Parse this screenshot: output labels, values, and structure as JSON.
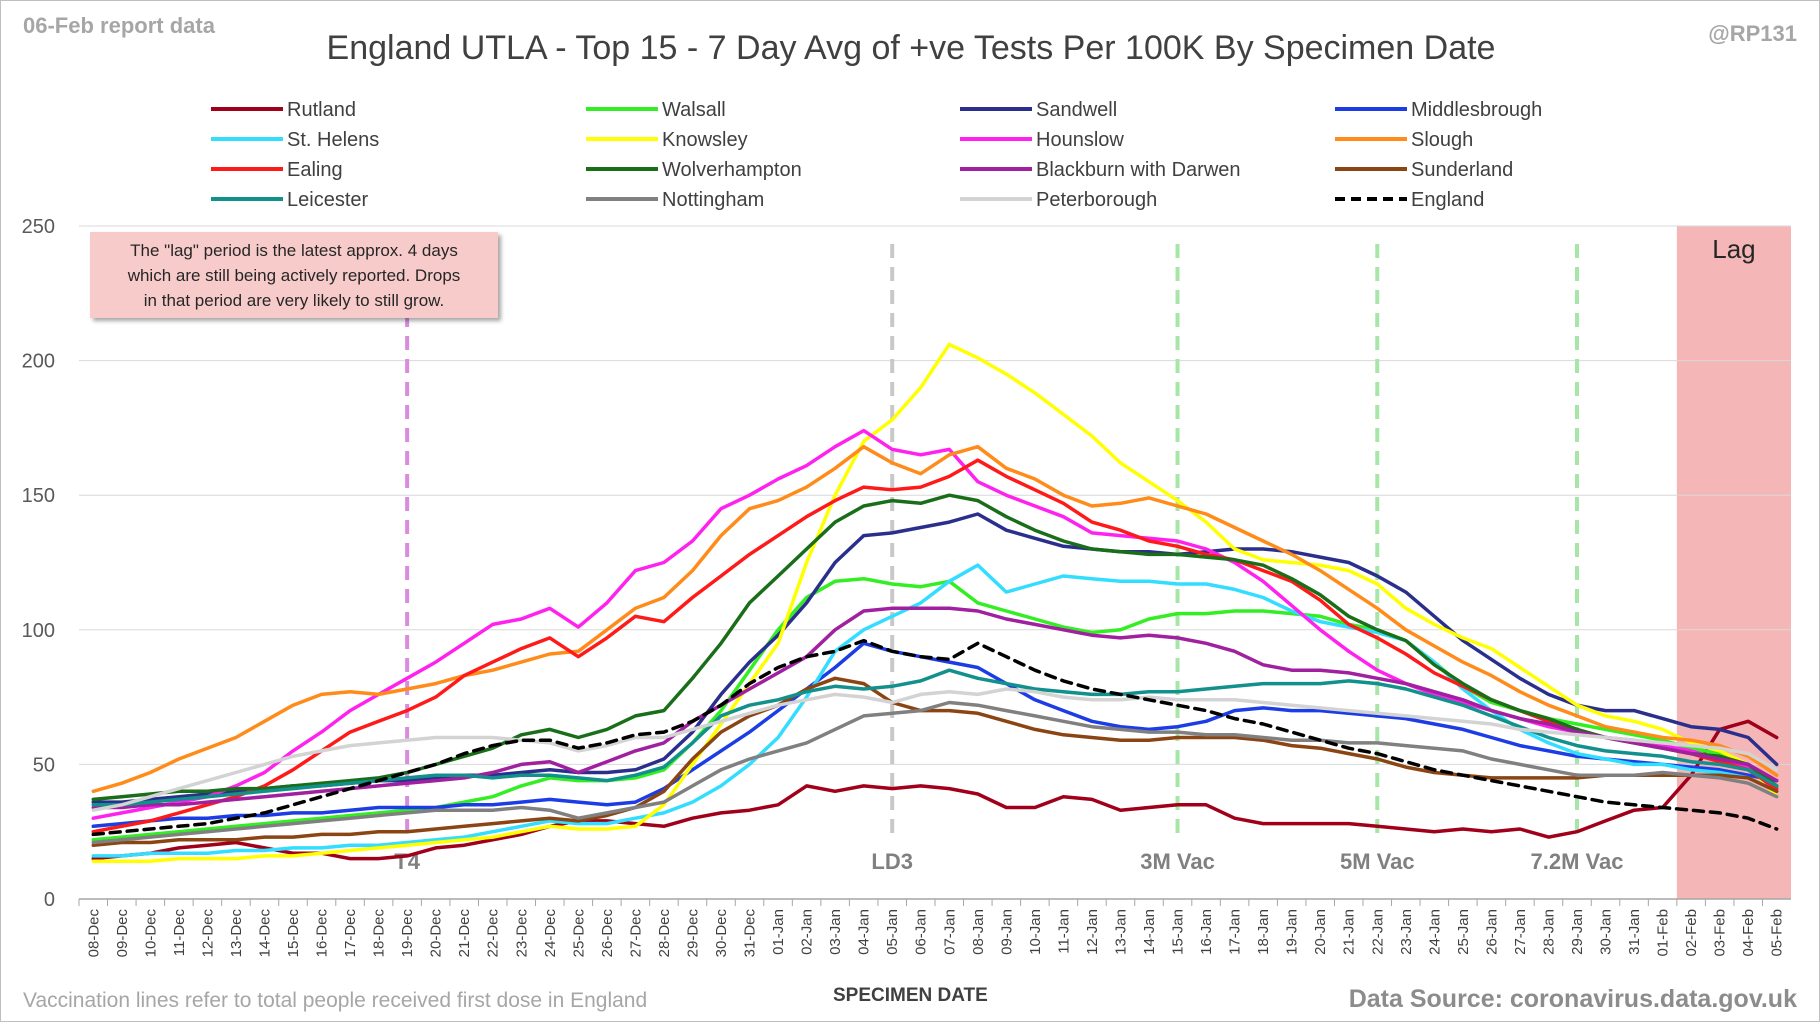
{
  "header": {
    "report_date_label": "06-Feb report data",
    "handle": "@RP131"
  },
  "annotation_box": {
    "lines": [
      "The \"lag\" period is the latest approx. 4 days",
      "which are still being actively reported.  Drops",
      "in that period are very likely to still grow."
    ]
  },
  "footer": {
    "note": "Vaccination lines refer to total people received first dose in England",
    "source": "Data Source: coronavirus.data.gov.uk"
  },
  "chart_data": {
    "type": "line",
    "title": "England UTLA - Top 15 - 7 Day Avg of +ve Tests Per 100K By Specimen Date",
    "xlabel": "SPECIMEN DATE",
    "ylabel": "",
    "ylim": [
      0,
      250
    ],
    "yticks": [
      0,
      50,
      100,
      150,
      200,
      250
    ],
    "grid": true,
    "legend_position": "top",
    "categories": [
      "08-Dec",
      "09-Dec",
      "10-Dec",
      "11-Dec",
      "12-Dec",
      "13-Dec",
      "14-Dec",
      "15-Dec",
      "16-Dec",
      "17-Dec",
      "18-Dec",
      "19-Dec",
      "20-Dec",
      "21-Dec",
      "22-Dec",
      "23-Dec",
      "24-Dec",
      "25-Dec",
      "26-Dec",
      "27-Dec",
      "28-Dec",
      "29-Dec",
      "30-Dec",
      "31-Dec",
      "01-Jan",
      "02-Jan",
      "03-Jan",
      "04-Jan",
      "05-Jan",
      "06-Jan",
      "07-Jan",
      "08-Jan",
      "09-Jan",
      "10-Jan",
      "11-Jan",
      "12-Jan",
      "13-Jan",
      "14-Jan",
      "15-Jan",
      "16-Jan",
      "17-Jan",
      "18-Jan",
      "19-Jan",
      "20-Jan",
      "21-Jan",
      "22-Jan",
      "23-Jan",
      "24-Jan",
      "25-Jan",
      "26-Jan",
      "27-Jan",
      "28-Jan",
      "29-Jan",
      "30-Jan",
      "31-Jan",
      "01-Feb",
      "02-Feb",
      "03-Feb",
      "04-Feb",
      "05-Feb"
    ],
    "lag_region": {
      "start": "02-Feb",
      "end": "05-Feb",
      "label": "Lag",
      "color": "#f4b6b6"
    },
    "vertical_markers": [
      {
        "x": "19-Dec",
        "label": "T4",
        "color": "#d98be0"
      },
      {
        "x": "05-Jan",
        "label": "LD3",
        "color": "#c8c8c8"
      },
      {
        "x": "15-Jan",
        "label": "3M Vac",
        "color": "#a6e6a6"
      },
      {
        "x": "22-Jan",
        "label": "5M Vac",
        "color": "#a6e6a6"
      },
      {
        "x": "29-Jan",
        "label": "7.2M Vac",
        "color": "#a6e6a6"
      }
    ],
    "series": [
      {
        "name": "Rutland",
        "color": "#a0001a",
        "dashed": false,
        "values": [
          15,
          16,
          17,
          19,
          20,
          21,
          19,
          17,
          17,
          15,
          15,
          16,
          19,
          20,
          22,
          24,
          27,
          29,
          29,
          28,
          27,
          30,
          32,
          33,
          35,
          42,
          40,
          42,
          41,
          42,
          41,
          39,
          34,
          34,
          38,
          37,
          33,
          34,
          35,
          35,
          30,
          28,
          28,
          28,
          28,
          27,
          26,
          25,
          26,
          25,
          26,
          23,
          25,
          29,
          33,
          34,
          46,
          63,
          66,
          60
        ]
      },
      {
        "name": "Walsall",
        "color": "#33ee22",
        "dashed": false,
        "values": [
          22,
          23,
          24,
          25,
          26,
          27,
          28,
          29,
          30,
          31,
          32,
          33,
          34,
          36,
          38,
          42,
          45,
          44,
          44,
          45,
          48,
          58,
          70,
          85,
          100,
          112,
          118,
          119,
          117,
          116,
          118,
          110,
          107,
          104,
          101,
          99,
          100,
          104,
          106,
          106,
          107,
          107,
          106,
          105,
          102,
          100,
          96,
          88,
          79,
          73,
          70,
          67,
          65,
          63,
          61,
          59,
          56,
          54,
          50,
          40
        ]
      },
      {
        "name": "Sandwell",
        "color": "#2b2f8c",
        "dashed": false,
        "values": [
          36,
          36,
          37,
          38,
          39,
          40,
          41,
          42,
          42,
          43,
          44,
          44,
          45,
          46,
          46,
          47,
          48,
          47,
          47,
          48,
          52,
          62,
          76,
          88,
          98,
          110,
          125,
          135,
          136,
          138,
          140,
          143,
          137,
          134,
          131,
          130,
          129,
          129,
          128,
          129,
          130,
          130,
          129,
          127,
          125,
          120,
          114,
          105,
          96,
          89,
          82,
          76,
          72,
          70,
          70,
          67,
          64,
          63,
          60,
          50
        ]
      },
      {
        "name": "Middlesbrough",
        "color": "#1c3ce6",
        "dashed": false,
        "values": [
          27,
          28,
          29,
          30,
          30,
          31,
          31,
          32,
          32,
          33,
          34,
          34,
          34,
          35,
          35,
          36,
          37,
          36,
          35,
          36,
          41,
          48,
          55,
          62,
          70,
          78,
          86,
          95,
          92,
          90,
          88,
          86,
          80,
          74,
          70,
          66,
          64,
          63,
          64,
          66,
          70,
          71,
          70,
          70,
          69,
          68,
          67,
          65,
          63,
          60,
          57,
          55,
          53,
          52,
          51,
          50,
          49,
          48,
          46,
          44
        ]
      },
      {
        "name": "St. Helens",
        "color": "#33ddff",
        "dashed": false,
        "values": [
          16,
          16,
          17,
          17,
          17,
          18,
          18,
          19,
          19,
          20,
          20,
          21,
          22,
          23,
          25,
          27,
          29,
          28,
          28,
          30,
          32,
          36,
          42,
          50,
          60,
          75,
          92,
          100,
          105,
          110,
          118,
          124,
          114,
          117,
          120,
          119,
          118,
          118,
          117,
          117,
          115,
          112,
          107,
          103,
          101,
          99,
          96,
          88,
          78,
          70,
          63,
          58,
          54,
          52,
          50,
          50,
          48,
          47,
          45,
          40
        ]
      },
      {
        "name": "Knowsley",
        "color": "#ffff00",
        "dashed": false,
        "values": [
          14,
          14,
          14,
          15,
          15,
          15,
          16,
          16,
          17,
          18,
          19,
          20,
          21,
          22,
          23,
          25,
          27,
          26,
          26,
          27,
          35,
          50,
          65,
          80,
          95,
          125,
          150,
          170,
          178,
          190,
          206,
          201,
          195,
          188,
          180,
          172,
          162,
          155,
          148,
          140,
          130,
          126,
          125,
          124,
          122,
          117,
          108,
          102,
          97,
          93,
          86,
          79,
          72,
          68,
          66,
          63,
          58,
          55,
          50,
          38
        ]
      },
      {
        "name": "Hounslow",
        "color": "#ff22ee",
        "dashed": false,
        "values": [
          30,
          32,
          34,
          36,
          38,
          42,
          47,
          55,
          62,
          70,
          76,
          82,
          88,
          95,
          102,
          104,
          108,
          101,
          110,
          122,
          125,
          133,
          145,
          150,
          156,
          161,
          168,
          174,
          167,
          165,
          167,
          155,
          150,
          146,
          142,
          136,
          135,
          134,
          133,
          130,
          125,
          118,
          109,
          100,
          92,
          85,
          80,
          76,
          73,
          70,
          67,
          64,
          62,
          60,
          59,
          57,
          55,
          52,
          49,
          40
        ]
      },
      {
        "name": "Slough",
        "color": "#ff8c1a",
        "dashed": false,
        "values": [
          40,
          43,
          47,
          52,
          56,
          60,
          66,
          72,
          76,
          77,
          76,
          78,
          80,
          83,
          85,
          88,
          91,
          92,
          100,
          108,
          112,
          122,
          135,
          145,
          148,
          153,
          160,
          168,
          162,
          158,
          165,
          168,
          160,
          156,
          150,
          146,
          147,
          149,
          146,
          143,
          138,
          133,
          128,
          122,
          115,
          108,
          100,
          94,
          88,
          83,
          77,
          72,
          68,
          64,
          62,
          60,
          59,
          57,
          53,
          46
        ]
      },
      {
        "name": "Ealing",
        "color": "#ff1a1a",
        "dashed": false,
        "values": [
          25,
          27,
          29,
          32,
          35,
          38,
          42,
          48,
          55,
          62,
          66,
          70,
          75,
          83,
          88,
          93,
          97,
          90,
          97,
          105,
          103,
          112,
          120,
          128,
          135,
          142,
          148,
          153,
          152,
          153,
          157,
          163,
          157,
          152,
          147,
          140,
          137,
          133,
          131,
          128,
          126,
          122,
          118,
          111,
          102,
          97,
          91,
          84,
          79,
          74,
          70,
          66,
          63,
          60,
          58,
          56,
          54,
          51,
          48,
          41
        ]
      },
      {
        "name": "Wolverhampton",
        "color": "#1a6e1a",
        "dashed": false,
        "values": [
          37,
          38,
          39,
          40,
          40,
          41,
          41,
          42,
          43,
          44,
          45,
          47,
          50,
          53,
          56,
          61,
          63,
          60,
          63,
          68,
          70,
          82,
          95,
          110,
          120,
          130,
          140,
          146,
          148,
          147,
          150,
          148,
          142,
          137,
          133,
          130,
          129,
          128,
          128,
          127,
          126,
          124,
          119,
          113,
          105,
          100,
          96,
          87,
          80,
          74,
          70,
          67,
          63,
          60,
          58,
          56,
          54,
          53,
          50,
          42
        ]
      },
      {
        "name": "Blackburn with Darwen",
        "color": "#a020a0",
        "dashed": false,
        "values": [
          34,
          34,
          35,
          35,
          36,
          37,
          38,
          39,
          40,
          41,
          42,
          43,
          44,
          45,
          47,
          50,
          51,
          47,
          51,
          55,
          58,
          66,
          72,
          78,
          84,
          90,
          100,
          107,
          108,
          108,
          108,
          107,
          104,
          102,
          100,
          98,
          97,
          98,
          97,
          95,
          92,
          87,
          85,
          85,
          84,
          82,
          80,
          77,
          74,
          70,
          67,
          65,
          62,
          60,
          58,
          56,
          54,
          52,
          50,
          44
        ]
      },
      {
        "name": "Sunderland",
        "color": "#8b4513",
        "dashed": false,
        "values": [
          20,
          21,
          21,
          22,
          22,
          22,
          23,
          23,
          24,
          24,
          25,
          25,
          26,
          27,
          28,
          29,
          30,
          29,
          31,
          34,
          40,
          52,
          62,
          68,
          72,
          78,
          82,
          80,
          73,
          70,
          70,
          69,
          66,
          63,
          61,
          60,
          59,
          59,
          60,
          60,
          60,
          59,
          57,
          56,
          54,
          52,
          49,
          47,
          46,
          45,
          45,
          45,
          45,
          46,
          46,
          46,
          46,
          46,
          45,
          40
        ]
      },
      {
        "name": "Leicester",
        "color": "#12908c",
        "dashed": false,
        "values": [
          35,
          35,
          36,
          37,
          38,
          39,
          40,
          41,
          42,
          43,
          44,
          45,
          46,
          46,
          45,
          46,
          46,
          45,
          44,
          46,
          49,
          58,
          68,
          72,
          74,
          77,
          79,
          78,
          79,
          81,
          85,
          82,
          80,
          78,
          77,
          76,
          76,
          77,
          77,
          78,
          79,
          80,
          80,
          80,
          81,
          80,
          78,
          75,
          72,
          68,
          64,
          60,
          57,
          55,
          54,
          53,
          51,
          50,
          48,
          42
        ]
      },
      {
        "name": "Nottingham",
        "color": "#808080",
        "dashed": false,
        "values": [
          21,
          22,
          23,
          24,
          25,
          26,
          27,
          28,
          29,
          30,
          31,
          32,
          33,
          33,
          33,
          34,
          33,
          30,
          32,
          34,
          36,
          42,
          48,
          52,
          55,
          58,
          63,
          68,
          69,
          70,
          73,
          72,
          70,
          68,
          66,
          64,
          63,
          62,
          62,
          61,
          61,
          60,
          59,
          59,
          58,
          58,
          57,
          56,
          55,
          52,
          50,
          48,
          46,
          46,
          46,
          47,
          46,
          45,
          43,
          38
        ]
      },
      {
        "name": "Peterborough",
        "color": "#d3d3d3",
        "dashed": false,
        "values": [
          33,
          35,
          38,
          41,
          44,
          47,
          50,
          53,
          55,
          57,
          58,
          59,
          60,
          60,
          60,
          59,
          58,
          55,
          57,
          60,
          60,
          63,
          66,
          69,
          72,
          74,
          76,
          75,
          73,
          76,
          77,
          76,
          78,
          77,
          75,
          74,
          74,
          75,
          74,
          74,
          74,
          73,
          72,
          71,
          70,
          69,
          68,
          67,
          66,
          65,
          63,
          62,
          61,
          60,
          59,
          58,
          57,
          56,
          54,
          48
        ]
      },
      {
        "name": "England",
        "color": "#000000",
        "dashed": true,
        "values": [
          24,
          25,
          26,
          27,
          28,
          30,
          32,
          35,
          38,
          41,
          44,
          47,
          50,
          54,
          57,
          59,
          59,
          56,
          58,
          61,
          62,
          66,
          72,
          80,
          86,
          90,
          92,
          96,
          92,
          90,
          89,
          95,
          90,
          85,
          81,
          78,
          76,
          74,
          72,
          70,
          67,
          65,
          62,
          59,
          56,
          54,
          51,
          48,
          46,
          44,
          42,
          40,
          38,
          36,
          35,
          34,
          33,
          32,
          30,
          26
        ]
      }
    ]
  }
}
